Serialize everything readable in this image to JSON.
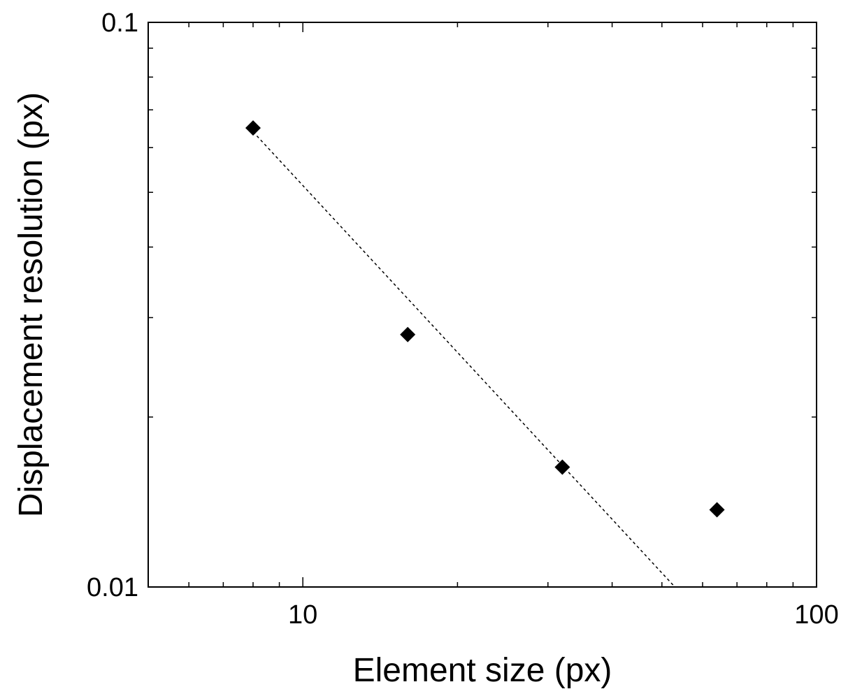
{
  "chart_data": {
    "type": "scatter",
    "title": "",
    "xlabel": "Element size (px)",
    "ylabel": "Displacement resolution (px)",
    "xscale": "log",
    "yscale": "log",
    "xlim": [
      5,
      100
    ],
    "ylim": [
      0.01,
      0.1
    ],
    "x_tick_labels": [
      "10",
      "100"
    ],
    "y_tick_labels": [
      "0.1",
      "0.01"
    ],
    "grid": false,
    "series": [
      {
        "marker": "diamond",
        "color": "#000000",
        "points": [
          {
            "x": 8,
            "y": 0.065
          },
          {
            "x": 16,
            "y": 0.028
          },
          {
            "x": 32,
            "y": 0.0163
          },
          {
            "x": 64,
            "y": 0.0137
          }
        ]
      }
    ],
    "fit_line": {
      "style": "dotted",
      "color": "#000000",
      "x": [
        8,
        53
      ],
      "y": [
        0.064,
        0.01
      ]
    }
  }
}
